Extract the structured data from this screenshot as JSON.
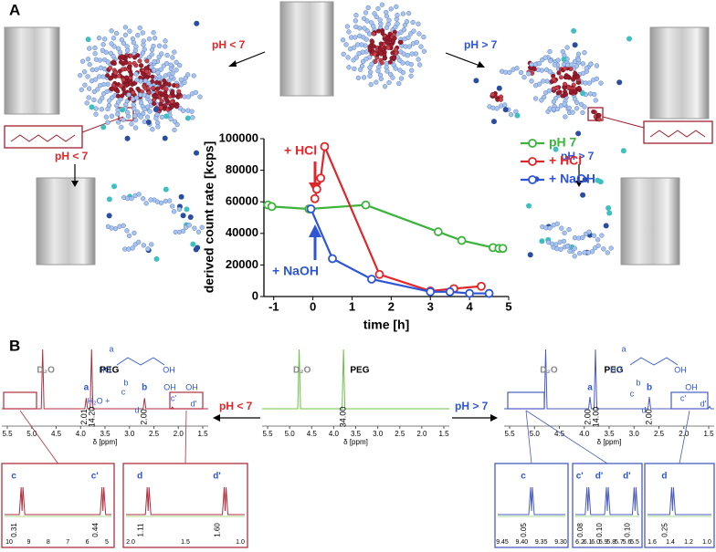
{
  "panel_a": {
    "label": "A",
    "ph_acid": "pH < 7",
    "ph_base": "pH > 7",
    "ph_acid_2": "pH < 7",
    "ph_base_2": "pH > 7"
  },
  "chart_data": {
    "type": "line",
    "x_label": "time [h]",
    "y_label": "derived count rate [kcps]",
    "xlim": [
      -1.25,
      5
    ],
    "xticks": [
      -1,
      0,
      1,
      2,
      3,
      4,
      5
    ],
    "ylim": [
      0,
      100000
    ],
    "yticks": [
      0,
      20000,
      40000,
      60000,
      80000,
      100000
    ],
    "grid": false,
    "legend": "top-right",
    "annotations": [
      "+ HCl",
      "+ NaOH"
    ],
    "series": [
      {
        "name": "pH 7",
        "color": "#3cb43c",
        "x": [
          -1.15,
          -1.05,
          -0.1,
          1.35,
          3.2,
          3.8,
          4.6,
          4.75,
          4.85
        ],
        "values": [
          58000,
          57000,
          55500,
          58000,
          41000,
          35500,
          31000,
          30500,
          30500
        ]
      },
      {
        "name": "+ HCl",
        "color": "#e0262a",
        "x": [
          0.05,
          0.1,
          0.2,
          0.3,
          1.7,
          3.0,
          3.6,
          4.3
        ],
        "values": [
          62000,
          68000,
          75000,
          95000,
          14000,
          3500,
          5000,
          6500
        ]
      },
      {
        "name": "+ NaOH",
        "color": "#2d55d6",
        "x": [
          -0.05,
          0.5,
          1.5,
          3.0,
          3.5,
          4.0,
          4.5
        ],
        "values": [
          55500,
          24000,
          11000,
          3000,
          3000,
          2000,
          2000
        ]
      }
    ]
  },
  "panel_b": {
    "label": "B",
    "arrow_acid": "pH < 7",
    "arrow_base": "pH > 7",
    "spectra": [
      {
        "solvent": "D₂O",
        "polymer": "PEG",
        "axis_label": "δ [ppm]",
        "ticks": [
          "5.5",
          "5.0",
          "4.5",
          "4.0",
          "3.5",
          "3.0",
          "2.5",
          "2.0",
          "1.5"
        ],
        "peak_labels": [
          "a",
          "b"
        ],
        "integrals": [
          "2.01",
          "14.20",
          "2.00"
        ]
      },
      {
        "solvent": "D₂O",
        "polymer": "PEG",
        "axis_label": "δ [ppm]",
        "ticks": [
          "5.5",
          "5.0",
          "4.5",
          "4.0",
          "3.5",
          "3.0",
          "2.5",
          "2.0",
          "1.5"
        ],
        "integrals": [
          "34.00"
        ]
      },
      {
        "solvent": "D₂O",
        "polymer": "PEG",
        "axis_label": "δ [ppm]",
        "ticks": [
          "5.5",
          "5.0",
          "4.5",
          "4.0",
          "3.5",
          "3.0",
          "2.5",
          "2.0",
          "1.5"
        ],
        "peak_labels": [
          "a",
          "b"
        ],
        "integrals": [
          "2.00",
          "14.00",
          "2.00"
        ]
      }
    ],
    "insets": [
      {
        "axis_label": "δ [ppm]",
        "ticks": [
          "10",
          "9",
          "8",
          "7",
          "6",
          "5"
        ],
        "peak_labels": [
          "c",
          "c'"
        ],
        "integrals": [
          "0.31",
          "0.44"
        ]
      },
      {
        "axis_label": "δ [ppm]",
        "ticks": [
          "2.0",
          "1.5",
          "1.0"
        ],
        "peak_labels": [
          "d",
          "d'"
        ],
        "integrals": [
          "1.11",
          "1.60"
        ]
      },
      {
        "axis_label": "δ [ppm]",
        "ticks": [
          "9.45",
          "9.40",
          "9.35",
          "9.30"
        ],
        "peak_labels": [
          "c"
        ],
        "integrals": [
          "0.05"
        ]
      },
      {
        "axis_label": "δ [ppm]",
        "ticks": [
          "6.2",
          "6.1",
          "6.0",
          "5.9",
          "5.8",
          "5.7",
          "5.6",
          "5.5"
        ],
        "peak_labels": [
          "c'",
          "d'",
          "d'"
        ],
        "integrals": [
          "0.08",
          "0.10",
          "0.10"
        ]
      },
      {
        "axis_label": "δ [ppm]",
        "ticks": [
          "1.6",
          "1.4",
          "1.2",
          "1.0"
        ],
        "peak_labels": [
          "d"
        ],
        "integrals": [
          "0.25"
        ]
      }
    ],
    "schemes": [
      {
        "labels": [
          "HO",
          "OH",
          "a",
          "b",
          "H₂O +",
          "c",
          "d",
          "c'",
          "d'",
          "OH",
          "OH"
        ]
      },
      {
        "labels": [
          "HO",
          "OH",
          "a",
          "b",
          "c",
          "d",
          "c'",
          "d'",
          "OH"
        ]
      }
    ]
  }
}
